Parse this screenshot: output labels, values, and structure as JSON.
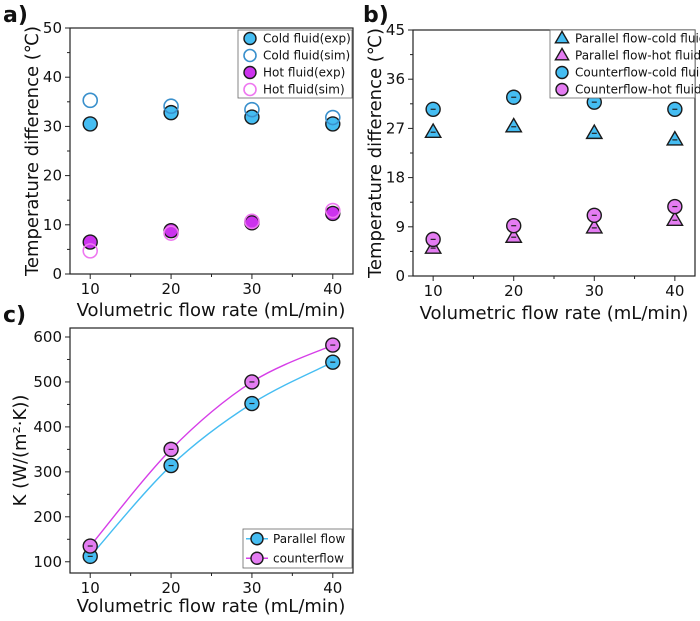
{
  "chart_data": [
    {
      "panel": "a)",
      "type": "scatter",
      "xlabel": "Volumetric flow rate (mL/min)",
      "ylabel": "Temperature difference (℃)",
      "x": [
        10,
        20,
        30,
        40
      ],
      "xticks": [
        10,
        20,
        30,
        40
      ],
      "xlim": [
        7.5,
        42.5
      ],
      "ylim": [
        0,
        50
      ],
      "yticks": [
        0,
        10,
        20,
        30,
        40,
        50
      ],
      "grid": false,
      "legend": "top-right",
      "series": [
        {
          "name": "Cold fluid(exp)",
          "values": [
            30.5,
            32.8,
            31.9,
            30.5
          ],
          "marker": "circle-filled",
          "fill": "#45bdf2",
          "stroke": "#1a1a1a"
        },
        {
          "name": "Cold fluid(sim)",
          "values": [
            35.3,
            34.1,
            33.4,
            31.8
          ],
          "marker": "circle-open",
          "fill": "none",
          "stroke": "#3a90cc"
        },
        {
          "name": "Hot fluid(exp)",
          "values": [
            6.5,
            8.8,
            10.4,
            12.3
          ],
          "marker": "circle-filled",
          "fill": "#cc33ee",
          "stroke": "#1a1a1a"
        },
        {
          "name": "Hot fluid(sim)",
          "values": [
            4.7,
            8.3,
            10.7,
            12.9
          ],
          "marker": "circle-open",
          "fill": "none",
          "stroke": "#ee77f0"
        }
      ]
    },
    {
      "panel": "b)",
      "type": "scatter",
      "xlabel": "Volumetric flow rate (mL/min)",
      "ylabel": "Temperature difference (℃)",
      "x": [
        10,
        20,
        30,
        40
      ],
      "xticks": [
        10,
        20,
        30,
        40
      ],
      "xlim": [
        7.5,
        42.5
      ],
      "ylim": [
        0,
        45
      ],
      "yticks": [
        0,
        9,
        18,
        27,
        36,
        45
      ],
      "grid": false,
      "legend": "top-right",
      "series": [
        {
          "name": "Parallel flow-cold fluid",
          "values": [
            26.3,
            27.3,
            26.1,
            24.9
          ],
          "marker": "triangle",
          "fill": "#45bdf2",
          "stroke": "#1a1a1a"
        },
        {
          "name": "Parallel flow-hot fluid",
          "values": [
            5.1,
            7.1,
            8.8,
            10.2
          ],
          "marker": "triangle",
          "fill": "#e47cf2",
          "stroke": "#1a1a1a"
        },
        {
          "name": "Counterflow-cold fluid",
          "values": [
            30.5,
            32.7,
            31.8,
            30.5
          ],
          "marker": "circle-filled",
          "fill": "#45bdf2",
          "stroke": "#1a1a1a"
        },
        {
          "name": "Counterflow-hot fluid",
          "values": [
            6.7,
            9.2,
            11.1,
            12.7
          ],
          "marker": "circle-filled",
          "fill": "#e47cf2",
          "stroke": "#1a1a1a"
        }
      ]
    },
    {
      "panel": "c)",
      "type": "line",
      "xlabel": "Volumetric flow rate (mL/min)",
      "ylabel": "K  (W/(m²·K))",
      "x": [
        10,
        20,
        30,
        40
      ],
      "xticks": [
        10,
        20,
        30,
        40
      ],
      "xlim": [
        7.5,
        42.5
      ],
      "ylim": [
        75,
        620
      ],
      "yticks": [
        100,
        200,
        300,
        400,
        500,
        600
      ],
      "grid": false,
      "legend": "bottom-right",
      "series": [
        {
          "name": "Parallel flow",
          "values": [
            112,
            314,
            452,
            544
          ],
          "marker": "circle-filled",
          "fill": "#45bdf2",
          "stroke": "#1a1a1a",
          "line": "#45bdf2"
        },
        {
          "name": "counterflow",
          "values": [
            135,
            350,
            500,
            582
          ],
          "marker": "circle-filled",
          "fill": "#e47cf2",
          "stroke": "#1a1a1a",
          "line": "#d63ee8"
        }
      ]
    }
  ]
}
